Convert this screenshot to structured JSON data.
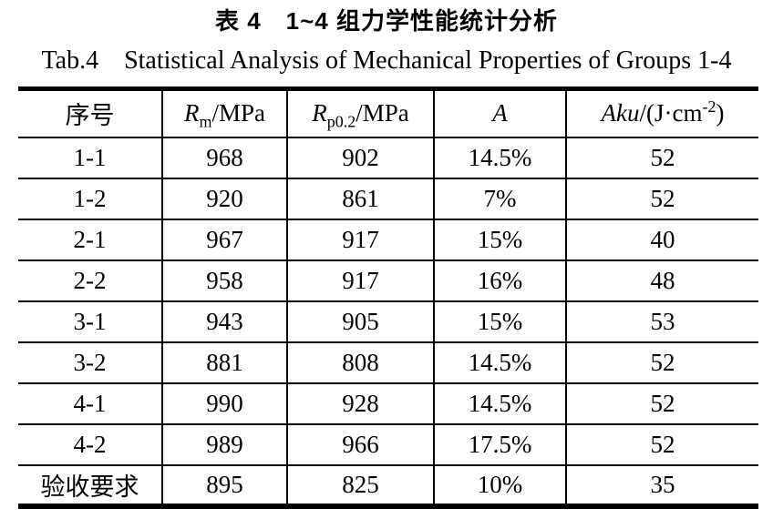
{
  "caption": {
    "chinese": "表 4　1~4 组力学性能统计分析",
    "english": "Tab.4　Statistical Analysis of Mechanical Properties of Groups 1-4"
  },
  "table": {
    "headers": {
      "serial": "序号",
      "rm": {
        "symbol": "R",
        "sub": "m",
        "unit": "/MPa"
      },
      "rp02": {
        "symbol": "R",
        "sub": "p0.2",
        "unit": "/MPa"
      },
      "elongation": "A",
      "aku": {
        "symbol": "Aku",
        "unit_pre": "/(J·cm",
        "sup": "-2",
        "unit_post": ")"
      }
    },
    "rows": [
      [
        "1-1",
        "968",
        "902",
        "14.5%",
        "52"
      ],
      [
        "1-2",
        "920",
        "861",
        "7%",
        "52"
      ],
      [
        "2-1",
        "967",
        "917",
        "15%",
        "40"
      ],
      [
        "2-2",
        "958",
        "917",
        "16%",
        "48"
      ],
      [
        "3-1",
        "943",
        "905",
        "15%",
        "53"
      ],
      [
        "3-2",
        "881",
        "808",
        "14.5%",
        "52"
      ],
      [
        "4-1",
        "990",
        "928",
        "14.5%",
        "52"
      ],
      [
        "4-2",
        "989",
        "966",
        "17.5%",
        "52"
      ],
      [
        "验收要求",
        "895",
        "825",
        "10%",
        "35"
      ]
    ]
  }
}
